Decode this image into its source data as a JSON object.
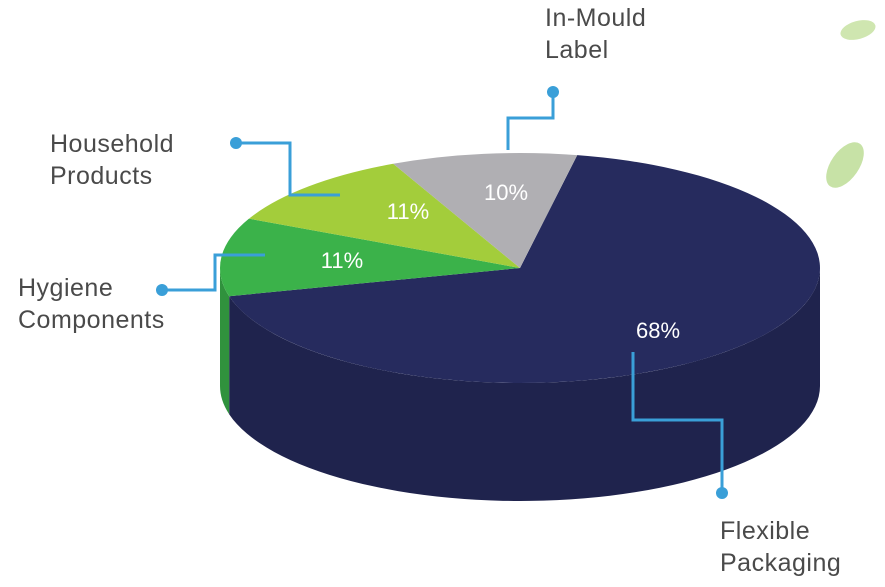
{
  "chart_data": {
    "type": "pie",
    "categories": [
      "Flexible Packaging",
      "Hygiene Components",
      "Household Products",
      "In-Mould Label"
    ],
    "values": [
      68,
      11,
      11,
      10
    ],
    "value_labels": [
      "68%",
      "11%",
      "11%",
      "10%"
    ],
    "colors": [
      "#262b5e",
      "#3bb24a",
      "#a3cd3b",
      "#b0afb3"
    ]
  }
}
